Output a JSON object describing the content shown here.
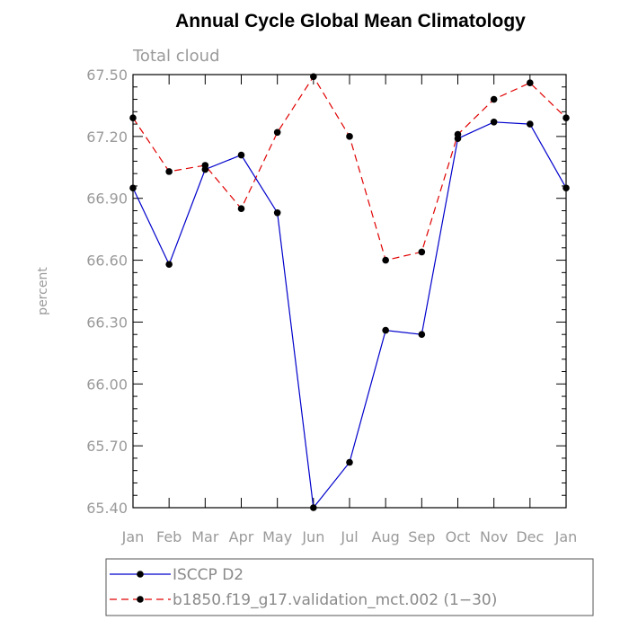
{
  "chart_data": {
    "type": "line",
    "title": "Annual Cycle Global Mean Climatology",
    "subtitle": "Total cloud",
    "xlabel": "",
    "ylabel": "percent",
    "categories": [
      "Jan",
      "Feb",
      "Mar",
      "Apr",
      "May",
      "Jun",
      "Jul",
      "Aug",
      "Sep",
      "Oct",
      "Nov",
      "Dec",
      "Jan"
    ],
    "ylim": [
      65.4,
      67.5
    ],
    "yticks": [
      "65.40",
      "65.70",
      "66.00",
      "66.30",
      "66.60",
      "66.90",
      "67.20",
      "67.50"
    ],
    "grid": false,
    "legend_position": "bottom",
    "series": [
      {
        "name": "ISCCP D2",
        "color": "#0000cc",
        "style": "solid",
        "values": [
          66.95,
          66.58,
          67.04,
          67.11,
          66.83,
          65.4,
          65.62,
          66.26,
          66.24,
          67.19,
          67.27,
          67.26,
          66.95
        ]
      },
      {
        "name": "b1850.f19_g17.validation_mct.002 (1−30)",
        "color": "#e00000",
        "style": "dashed",
        "values": [
          67.29,
          67.03,
          67.06,
          66.85,
          67.22,
          67.49,
          67.2,
          66.6,
          66.64,
          67.21,
          67.38,
          67.46,
          67.29
        ]
      }
    ]
  }
}
